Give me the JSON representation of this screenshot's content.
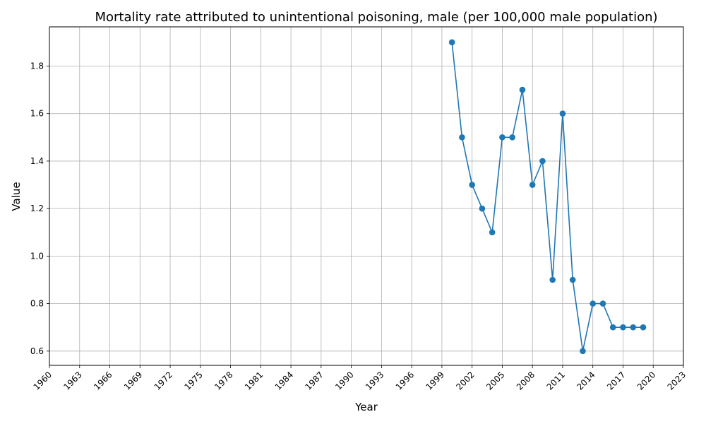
{
  "chart_data": {
    "type": "line",
    "title": "Mortality rate attributed to unintentional poisoning, male (per 100,000 male population)",
    "xlabel": "Year",
    "ylabel": "Value",
    "xlim": [
      1960,
      2023
    ],
    "ylim": [
      0.54,
      1.965
    ],
    "x_ticks": [
      "1960",
      "1963",
      "1966",
      "1969",
      "1972",
      "1975",
      "1978",
      "1981",
      "1984",
      "1987",
      "1990",
      "1993",
      "1996",
      "1999",
      "2002",
      "2005",
      "2008",
      "2011",
      "2014",
      "2017",
      "2020",
      "2023"
    ],
    "y_ticks": [
      "0.6",
      "0.8",
      "1.0",
      "1.2",
      "1.4",
      "1.6",
      "1.8"
    ],
    "grid": true,
    "series": [
      {
        "color": "#1f77b4",
        "x": [
          2000,
          2001,
          2002,
          2003,
          2004,
          2005,
          2006,
          2007,
          2008,
          2009,
          2010,
          2011,
          2012,
          2013,
          2014,
          2015,
          2016,
          2017,
          2018,
          2019
        ],
        "values": [
          1.9,
          1.5,
          1.3,
          1.2,
          1.1,
          1.5,
          1.5,
          1.7,
          1.3,
          1.4,
          0.9,
          1.6,
          0.9,
          0.6,
          0.8,
          0.8,
          0.7,
          0.7,
          0.7,
          0.7
        ]
      }
    ]
  }
}
